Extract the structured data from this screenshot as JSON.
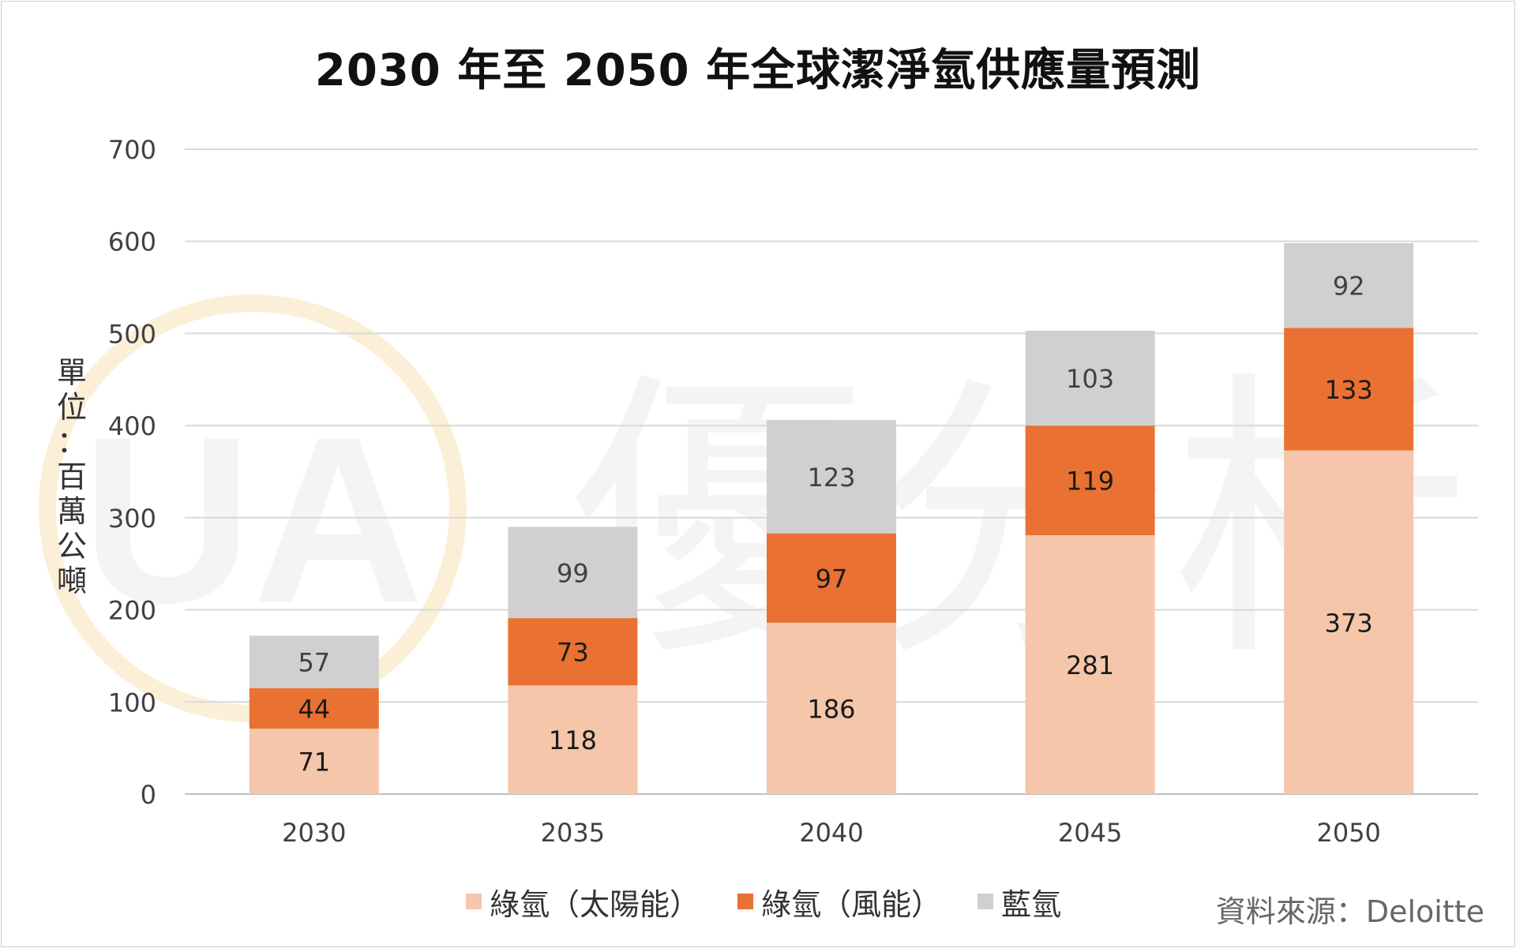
{
  "chart_data": {
    "type": "bar",
    "stacked": true,
    "title": "2030 年至 2050 年全球潔淨氫供應量預測",
    "ylabel": "單位：百萬公噸",
    "xlabel": "",
    "ylim": [
      0,
      700
    ],
    "yticks": [
      0,
      100,
      200,
      300,
      400,
      500,
      600,
      700
    ],
    "grid": true,
    "legend_position": "bottom",
    "categories": [
      "2030",
      "2035",
      "2040",
      "2045",
      "2050"
    ],
    "series": [
      {
        "name": "綠氫（太陽能）",
        "color": "#f5c6aa",
        "values": [
          71,
          118,
          186,
          281,
          373
        ]
      },
      {
        "name": "綠氫（風能）",
        "color": "#e97132",
        "values": [
          44,
          73,
          97,
          119,
          133
        ]
      },
      {
        "name": "藍氫",
        "color": "#d0d0d0",
        "values": [
          57,
          99,
          123,
          103,
          92
        ]
      }
    ],
    "source": "資料來源：Deloitte"
  },
  "watermark": {
    "text": "優分析",
    "logo_text": "UA"
  }
}
